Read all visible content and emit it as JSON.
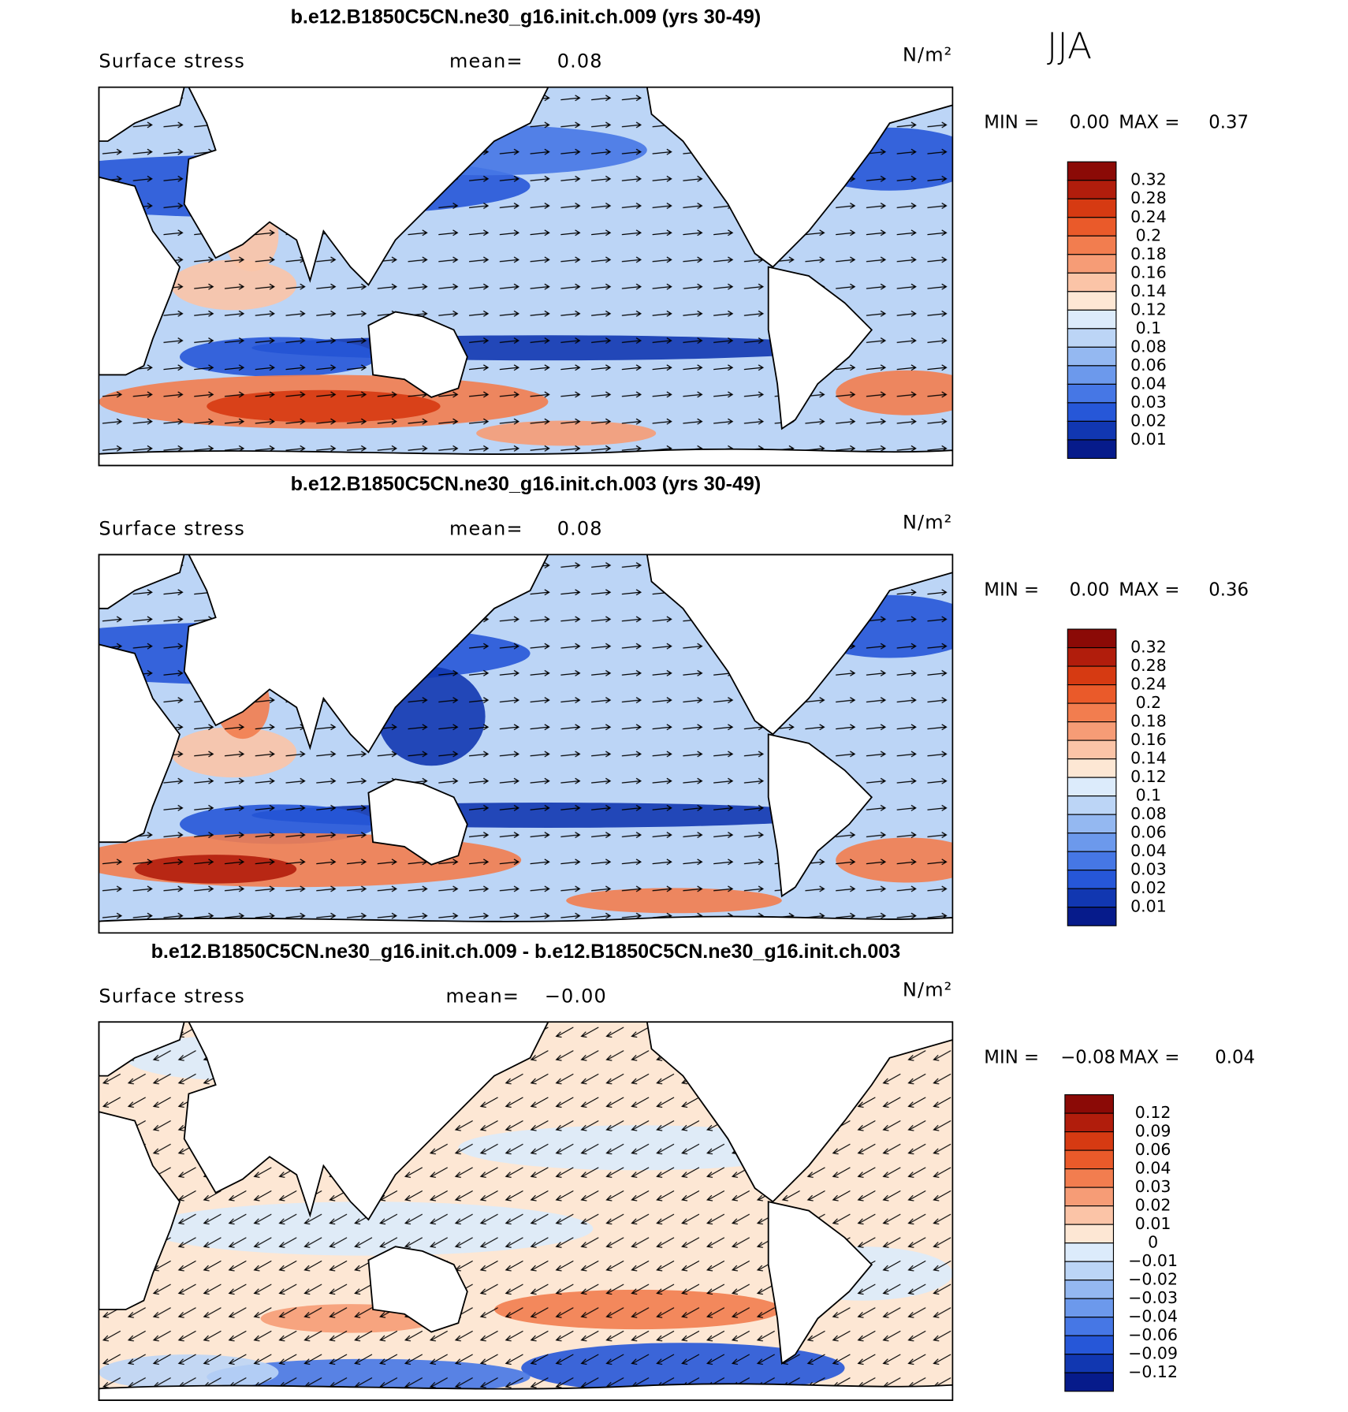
{
  "season": "JJA",
  "panels": [
    {
      "title": "b.e12.B1850C5CN.ne30_g16.init.ch.009 (yrs 30-49)",
      "variable": "Surface stress",
      "mean_label": "mean=",
      "mean": "0.08",
      "units": "N/m²",
      "min_label": "MIN =",
      "min": "0.00",
      "max_label": "MAX =",
      "max": "0.37",
      "colorbar": {
        "labels": [
          "0.32",
          "0.28",
          "0.24",
          "0.2",
          "0.18",
          "0.16",
          "0.14",
          "0.12",
          "0.1",
          "0.08",
          "0.06",
          "0.04",
          "0.03",
          "0.02",
          "0.01"
        ],
        "colors": [
          "#8b0a06",
          "#b11d0c",
          "#d63a12",
          "#ea5a2a",
          "#f27d4f",
          "#f69c76",
          "#fbc4a7",
          "#fde7d4",
          "#dcebfb",
          "#bcd5f6",
          "#94b8f1",
          "#6c99ec",
          "#4677e5",
          "#2657d8",
          "#1137b1",
          "#061b8b"
        ]
      }
    },
    {
      "title": "b.e12.B1850C5CN.ne30_g16.init.ch.003 (yrs 30-49)",
      "variable": "Surface stress",
      "mean_label": "mean=",
      "mean": "0.08",
      "units": "N/m²",
      "min_label": "MIN =",
      "min": "0.00",
      "max_label": "MAX =",
      "max": "0.36",
      "colorbar": {
        "labels": [
          "0.32",
          "0.28",
          "0.24",
          "0.2",
          "0.18",
          "0.16",
          "0.14",
          "0.12",
          "0.1",
          "0.08",
          "0.06",
          "0.04",
          "0.03",
          "0.02",
          "0.01"
        ],
        "colors": [
          "#8b0a06",
          "#b11d0c",
          "#d63a12",
          "#ea5a2a",
          "#f27d4f",
          "#f69c76",
          "#fbc4a7",
          "#fde7d4",
          "#dcebfb",
          "#bcd5f6",
          "#94b8f1",
          "#6c99ec",
          "#4677e5",
          "#2657d8",
          "#1137b1",
          "#061b8b"
        ]
      }
    },
    {
      "title": "b.e12.B1850C5CN.ne30_g16.init.ch.009 - b.e12.B1850C5CN.ne30_g16.init.ch.003",
      "variable": "Surface stress",
      "mean_label": "mean=",
      "mean": "−0.00",
      "units": "N/m²",
      "min_label": "MIN =",
      "min": "−0.08",
      "max_label": "MAX =",
      "max": "0.04",
      "colorbar": {
        "labels": [
          "0.12",
          "0.09",
          "0.06",
          "0.04",
          "0.03",
          "0.02",
          "0.01",
          "0",
          "−0.01",
          "−0.02",
          "−0.03",
          "−0.04",
          "−0.06",
          "−0.09",
          "−0.12"
        ],
        "colors": [
          "#8b0a06",
          "#b11d0c",
          "#d63a12",
          "#ea5a2a",
          "#f27d4f",
          "#f69c76",
          "#fbc4a7",
          "#fde7d4",
          "#dcebfb",
          "#bcd5f6",
          "#94b8f1",
          "#6c99ec",
          "#4677e5",
          "#2657d8",
          "#1137b1",
          "#061b8b"
        ]
      }
    }
  ]
}
